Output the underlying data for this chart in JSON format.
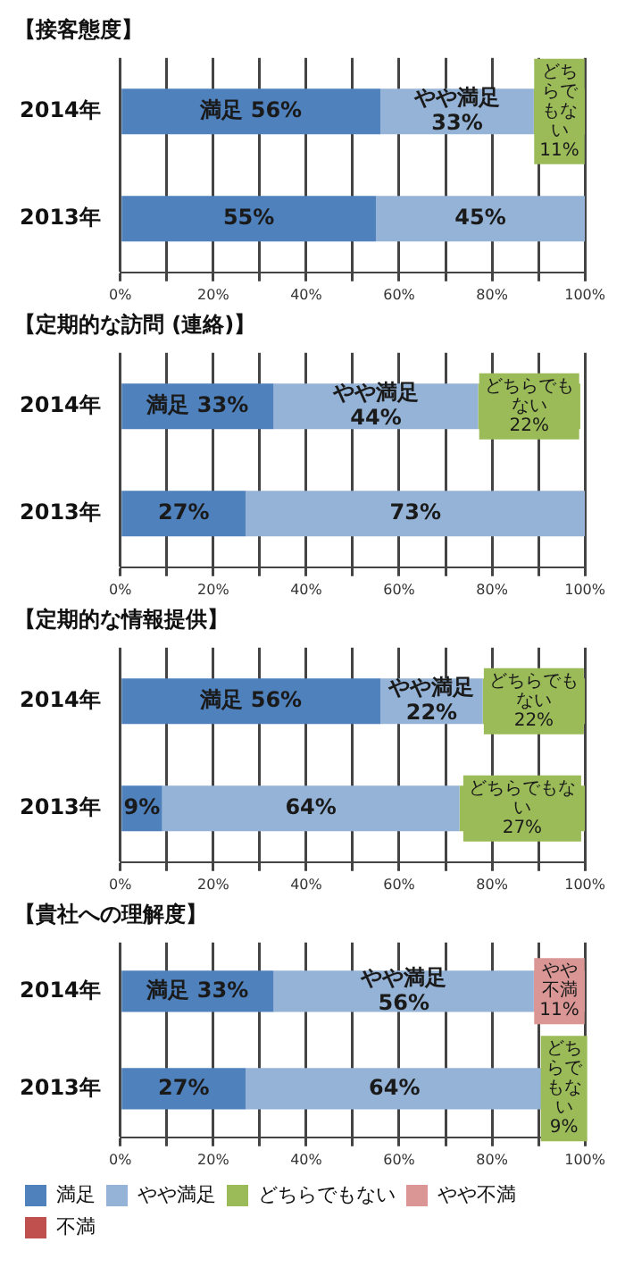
{
  "chart_data": [
    {
      "type": "bar",
      "orientation": "horizontal",
      "stacked": true,
      "title": "【接客態度】",
      "categories": [
        "2014年",
        "2013年"
      ],
      "xlim": [
        0,
        100
      ],
      "xticks": [
        {
          "value": 0,
          "label": "0%"
        },
        {
          "value": 10,
          "label": null
        },
        {
          "value": 20,
          "label": "20%"
        },
        {
          "value": 30,
          "label": null
        },
        {
          "value": 40,
          "label": "40%"
        },
        {
          "value": 50,
          "label": null
        },
        {
          "value": 60,
          "label": "60%"
        },
        {
          "value": 70,
          "label": null
        },
        {
          "value": 80,
          "label": "80%"
        },
        {
          "value": 90,
          "label": null
        },
        {
          "value": 100,
          "label": "100%"
        }
      ],
      "grid": "x",
      "legend": false,
      "series": [
        {
          "color": "#4f81bd",
          "values": [
            56,
            55
          ],
          "value_labels": [
            "満足 56%",
            "55%"
          ]
        },
        {
          "color": "#95b3d7",
          "values": [
            33,
            45
          ],
          "value_labels": [
            "やや満足\n33%",
            "45%"
          ]
        },
        {
          "color": "#9bbb59",
          "values": [
            11,
            null
          ],
          "value_labels": [
            "どちらでもない\n11%",
            null
          ]
        }
      ]
    },
    {
      "type": "bar",
      "orientation": "horizontal",
      "stacked": true,
      "title": "【定期的な訪問 (連絡)】",
      "categories": [
        "2014年",
        "2013年"
      ],
      "xlim": [
        0,
        100
      ],
      "xticks": [
        {
          "value": 0,
          "label": "0%"
        },
        {
          "value": 10,
          "label": null
        },
        {
          "value": 20,
          "label": "20%"
        },
        {
          "value": 30,
          "label": null
        },
        {
          "value": 40,
          "label": "40%"
        },
        {
          "value": 50,
          "label": null
        },
        {
          "value": 60,
          "label": "60%"
        },
        {
          "value": 70,
          "label": null
        },
        {
          "value": 80,
          "label": "80%"
        },
        {
          "value": 90,
          "label": null
        },
        {
          "value": 100,
          "label": "100%"
        }
      ],
      "grid": "x",
      "legend": false,
      "series": [
        {
          "color": "#4f81bd",
          "values": [
            33,
            27
          ],
          "value_labels": [
            "満足 33%",
            "27%"
          ]
        },
        {
          "color": "#95b3d7",
          "values": [
            44,
            73
          ],
          "value_labels": [
            "やや満足\n44%",
            "73%"
          ]
        },
        {
          "color": "#9bbb59",
          "values": [
            22,
            null
          ],
          "value_labels": [
            "どちらでもない\n22%",
            null
          ]
        }
      ]
    },
    {
      "type": "bar",
      "orientation": "horizontal",
      "stacked": true,
      "title": "【定期的な情報提供】",
      "categories": [
        "2014年",
        "2013年"
      ],
      "xlim": [
        0,
        100
      ],
      "xticks": [
        {
          "value": 0,
          "label": "0%"
        },
        {
          "value": 10,
          "label": null
        },
        {
          "value": 20,
          "label": "20%"
        },
        {
          "value": 30,
          "label": null
        },
        {
          "value": 40,
          "label": "40%"
        },
        {
          "value": 50,
          "label": null
        },
        {
          "value": 60,
          "label": "60%"
        },
        {
          "value": 70,
          "label": null
        },
        {
          "value": 80,
          "label": "80%"
        },
        {
          "value": 90,
          "label": null
        },
        {
          "value": 100,
          "label": "100%"
        }
      ],
      "grid": "x",
      "legend": false,
      "series": [
        {
          "color": "#4f81bd",
          "values": [
            56,
            9
          ],
          "value_labels": [
            "満足 56%",
            "9%"
          ]
        },
        {
          "color": "#95b3d7",
          "values": [
            22,
            64
          ],
          "value_labels": [
            "やや満足\n22%",
            "64%"
          ]
        },
        {
          "color": "#9bbb59",
          "values": [
            22,
            27
          ],
          "value_labels": [
            "どちらでもない\n22%",
            "どちらでもない\n27%"
          ]
        }
      ]
    },
    {
      "type": "bar",
      "orientation": "horizontal",
      "stacked": true,
      "title": "【貴社への理解度】",
      "categories": [
        "2014年",
        "2013年"
      ],
      "xlim": [
        0,
        100
      ],
      "xticks": [
        {
          "value": 0,
          "label": "0%"
        },
        {
          "value": 10,
          "label": null
        },
        {
          "value": 20,
          "label": "20%"
        },
        {
          "value": 30,
          "label": null
        },
        {
          "value": 40,
          "label": "40%"
        },
        {
          "value": 50,
          "label": null
        },
        {
          "value": 60,
          "label": "60%"
        },
        {
          "value": 70,
          "label": null
        },
        {
          "value": 80,
          "label": "80%"
        },
        {
          "value": 90,
          "label": null
        },
        {
          "value": 100,
          "label": "100%"
        }
      ],
      "grid": "x",
      "legend": "bottom",
      "series": [
        {
          "name": "満足",
          "color": "#4f81bd",
          "values": [
            33,
            27
          ],
          "value_labels": [
            "満足 33%",
            "27%"
          ]
        },
        {
          "name": "やや満足",
          "color": "#95b3d7",
          "values": [
            56,
            64
          ],
          "value_labels": [
            "やや満足\n56%",
            "64%"
          ]
        },
        {
          "name": "どちらでもない",
          "color": "#9bbb59",
          "values": [
            null,
            9
          ],
          "value_labels": [
            null,
            "どちらでもない\n9%"
          ]
        },
        {
          "name": "やや不満",
          "color": "#da9694",
          "values": [
            11,
            null
          ],
          "value_labels": [
            "やや不満\n11%",
            null
          ]
        },
        {
          "name": "不満",
          "color": "#c0504d",
          "values": [
            null,
            null
          ],
          "value_labels": [
            null,
            null
          ]
        }
      ]
    }
  ]
}
